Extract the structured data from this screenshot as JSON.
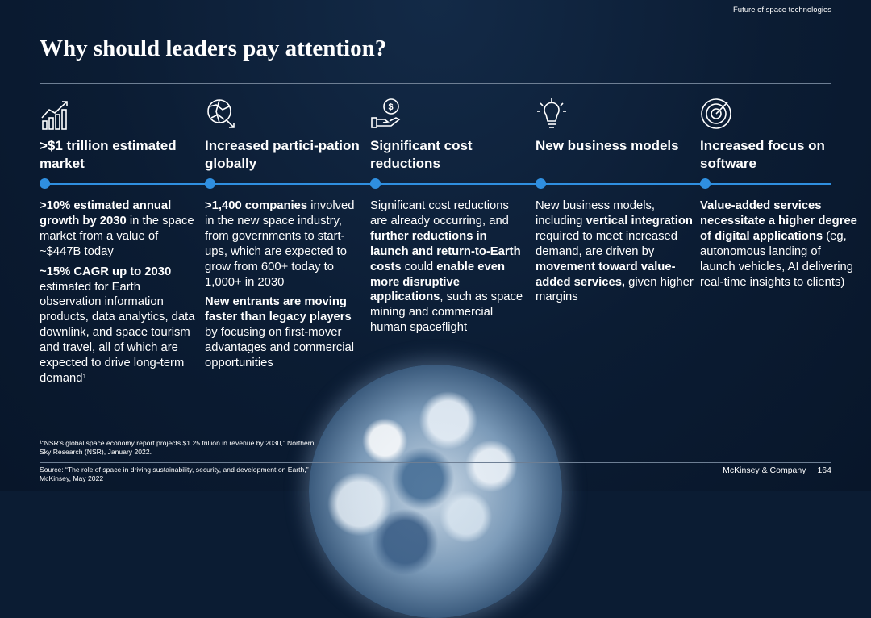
{
  "header": {
    "top_label": "Future of space technologies",
    "title": "Why should leaders pay attention?"
  },
  "columns": [
    {
      "icon": "growth-chart-icon",
      "title": ">$1 trillion estimated market",
      "body": [
        [
          {
            "t": ">10% estimated annual growth by 2030",
            "b": true
          },
          {
            "t": " in the space market from a value of ~$447B today",
            "b": false
          }
        ],
        [
          {
            "t": "~15% CAGR up to 2030",
            "b": true
          },
          {
            "t": " estimated for Earth observation information products, data analytics, data downlink, and space tourism and travel, all of which are expected to drive long-term demand¹",
            "b": false
          }
        ]
      ]
    },
    {
      "icon": "globe-network-icon",
      "title": "Increased partici-pation globally",
      "body": [
        [
          {
            "t": ">1,400 companies",
            "b": true
          },
          {
            "t": " involved in the new space industry, from governments to start-ups, which are expected to grow from 600+ today to 1,000+ in 2030",
            "b": false
          }
        ],
        [
          {
            "t": "New entrants are moving faster than legacy players",
            "b": true
          },
          {
            "t": " by focusing on first-mover advantages and commercial opportunities",
            "b": false
          }
        ]
      ]
    },
    {
      "icon": "hand-coin-icon",
      "title": "Significant cost reductions",
      "body": [
        [
          {
            "t": "Significant cost reductions are already occurring, and ",
            "b": false
          },
          {
            "t": "further reductions in launch and return-to-Earth costs",
            "b": true
          },
          {
            "t": " could ",
            "b": false
          },
          {
            "t": "enable even more disruptive applications",
            "b": true
          },
          {
            "t": ", such as space mining and commercial human spaceflight",
            "b": false
          }
        ]
      ]
    },
    {
      "icon": "lightbulb-icon",
      "title": "New business models",
      "body": [
        [
          {
            "t": "New business models, including ",
            "b": false
          },
          {
            "t": "vertical integration",
            "b": true
          },
          {
            "t": " required to meet increased demand, are driven by ",
            "b": false
          },
          {
            "t": "movement toward value-added services,",
            "b": true
          },
          {
            "t": " given higher margins",
            "b": false
          }
        ]
      ]
    },
    {
      "icon": "target-icon",
      "title": "Increased focus on software",
      "body": [
        [
          {
            "t": "Value-added services necessitate a higher degree of digital applications",
            "b": true
          },
          {
            "t": " (eg, autonomous landing of launch vehicles, AI delivering real-time insights to clients)",
            "b": false
          }
        ]
      ]
    }
  ],
  "footer": {
    "footnote": "¹“NSR’s global space economy report projects $1.25 trillion in revenue by 2030,” Northern Sky Research (NSR), January 2022.",
    "source": "Source: “The role of space in driving sustainability, security, and development on Earth,” McKinsey, May 2022",
    "company": "McKinsey & Company",
    "page_number": "164"
  },
  "colors": {
    "accent": "#2f8fe0",
    "background": "#0b1c33"
  }
}
